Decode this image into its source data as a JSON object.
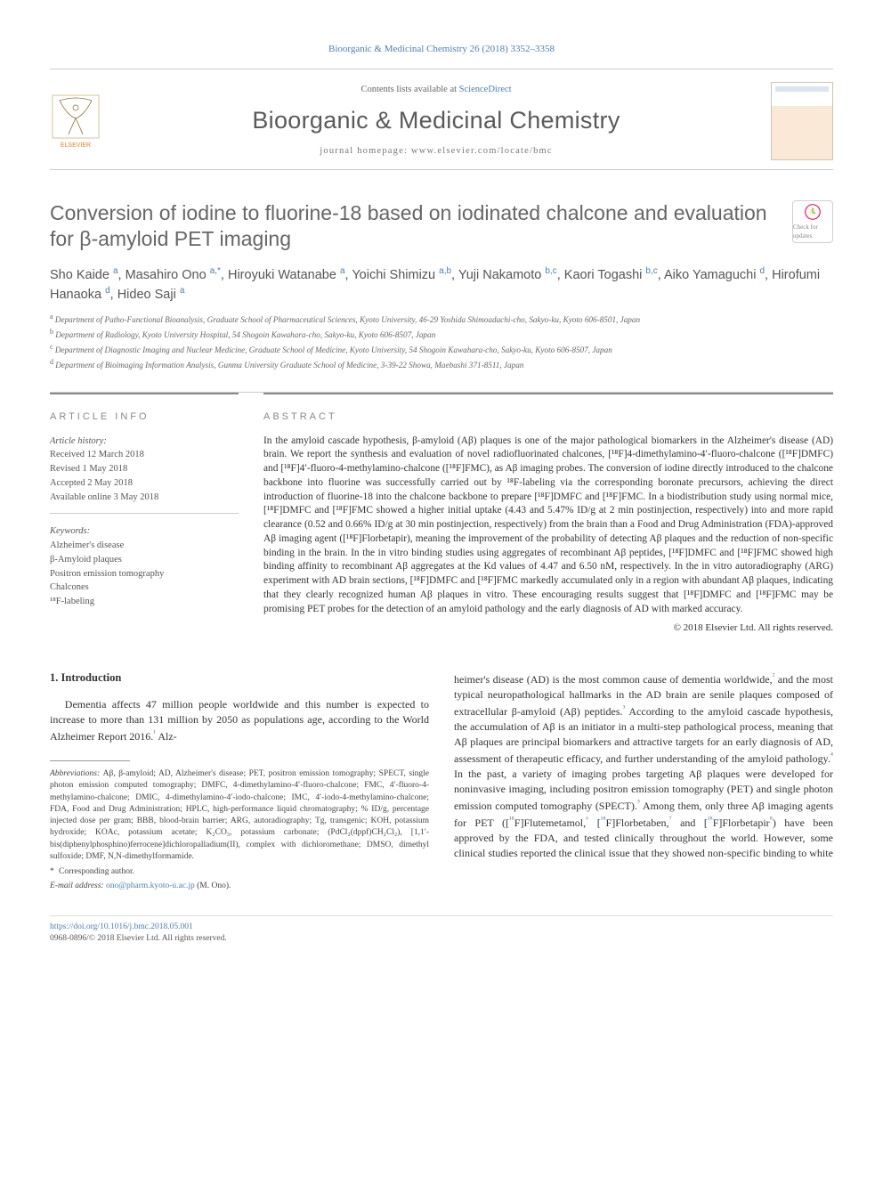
{
  "citation": "Bioorganic & Medicinal Chemistry 26 (2018) 3352–3358",
  "header": {
    "contents_prefix": "Contents lists available at ",
    "contents_link": "ScienceDirect",
    "journal": "Bioorganic & Medicinal Chemistry",
    "homepage": "journal homepage: www.elsevier.com/locate/bmc",
    "publisher": "ELSEVIER"
  },
  "title": "Conversion of iodine to fluorine-18 based on iodinated chalcone and evaluation for β-amyloid PET imaging",
  "update_badge": "Check for updates",
  "authors_html": "Sho Kaide <sup>a</sup>, Masahiro Ono <sup>a,*</sup>, Hiroyuki Watanabe <sup>a</sup>, Yoichi Shimizu <sup>a,b</sup>, Yuji Nakamoto <sup>b,c</sup>, Kaori Togashi <sup>b,c</sup>, Aiko Yamaguchi <sup>d</sup>, Hirofumi Hanaoka <sup>d</sup>, Hideo Saji <sup>a</sup>",
  "affiliations": [
    {
      "sup": "a",
      "text": "Department of Patho-Functional Bioanalysis, Graduate School of Pharmaceutical Sciences, Kyoto University, 46-29 Yoshida Shimoadachi-cho, Sakyo-ku, Kyoto 606-8501, Japan"
    },
    {
      "sup": "b",
      "text": "Department of Radiology, Kyoto University Hospital, 54 Shogoin Kawahara-cho, Sakyo-ku, Kyoto 606-8507, Japan"
    },
    {
      "sup": "c",
      "text": "Department of Diagnostic Imaging and Nuclear Medicine, Graduate School of Medicine, Kyoto University, 54 Shogoin Kawahara-cho, Sakyo-ku, Kyoto 606-8507, Japan"
    },
    {
      "sup": "d",
      "text": "Department of Bioimaging Information Analysis, Gunma University Graduate School of Medicine, 3-39-22 Showa, Maebashi 371-8511, Japan"
    }
  ],
  "article_info": {
    "heading": "ARTICLE INFO",
    "history_label": "Article history:",
    "history": [
      "Received 12 March 2018",
      "Revised 1 May 2018",
      "Accepted 2 May 2018",
      "Available online 3 May 2018"
    ],
    "keywords_label": "Keywords:",
    "keywords": [
      "Alzheimer's disease",
      "β-Amyloid plaques",
      "Positron emission tomography",
      "Chalcones",
      "¹⁸F-labeling"
    ]
  },
  "abstract": {
    "heading": "ABSTRACT",
    "text": "In the amyloid cascade hypothesis, β-amyloid (Aβ) plaques is one of the major pathological biomarkers in the Alzheimer's disease (AD) brain. We report the synthesis and evaluation of novel radiofluorinated chalcones, [¹⁸F]4-dimethylamino-4′-fluoro-chalcone ([¹⁸F]DMFC) and [¹⁸F]4′-fluoro-4-methylamino-chalcone ([¹⁸F]FMC), as Aβ imaging probes. The conversion of iodine directly introduced to the chalcone backbone into fluorine was successfully carried out by ¹⁸F-labeling via the corresponding boronate precursors, achieving the direct introduction of fluorine-18 into the chalcone backbone to prepare [¹⁸F]DMFC and [¹⁸F]FMC. In a biodistribution study using normal mice, [¹⁸F]DMFC and [¹⁸F]FMC showed a higher initial uptake (4.43 and 5.47% ID/g at 2 min postinjection, respectively) into and more rapid clearance (0.52 and 0.66% ID/g at 30 min postinjection, respectively) from the brain than a Food and Drug Administration (FDA)-approved Aβ imaging agent ([¹⁸F]Florbetapir), meaning the improvement of the probability of detecting Aβ plaques and the reduction of non-specific binding in the brain. In the in vitro binding studies using aggregates of recombinant Aβ peptides, [¹⁸F]DMFC and [¹⁸F]FMC showed high binding affinity to recombinant Aβ aggregates at the Kd values of 4.47 and 6.50 nM, respectively. In the in vitro autoradiography (ARG) experiment with AD brain sections, [¹⁸F]DMFC and [¹⁸F]FMC markedly accumulated only in a region with abundant Aβ plaques, indicating that they clearly recognized human Aβ plaques in vitro. These encouraging results suggest that [¹⁸F]DMFC and [¹⁸F]FMC may be promising PET probes for the detection of an amyloid pathology and the early diagnosis of AD with marked accuracy.",
    "copyright": "© 2018 Elsevier Ltd. All rights reserved."
  },
  "intro": {
    "heading": "1. Introduction",
    "col1": "Dementia affects 47 million people worldwide and this number is expected to increase to more than 131 million by 2050 as populations age, according to the World Alzheimer Report 2016.¹ Alz-",
    "col2": "heimer's disease (AD) is the most common cause of dementia worldwide,² and the most typical neuropathological hallmarks in the AD brain are senile plaques composed of extracellular β-amyloid (Aβ) peptides.³ According to the amyloid cascade hypothesis, the accumulation of Aβ is an initiator in a multi-step pathological process, meaning that Aβ plaques are principal biomarkers and attractive targets for an early diagnosis of AD, assessment of therapeutic efficacy, and further understanding of the amyloid pathology.⁴ In the past, a variety of imaging probes targeting Aβ plaques were developed for noninvasive imaging, including positron emission tomography (PET) and single photon emission computed tomography (SPECT).⁵ Among them, only three Aβ imaging agents for PET ([¹⁸F]Flutemetamol,⁶ [¹⁸F]Florbetaben,⁷ and [¹⁸F]Florbetapir⁸) have been approved by the FDA, and tested clinically throughout the world. However, some clinical studies reported the clinical issue that they showed non-specific binding to white"
  },
  "footnotes": {
    "abbrev_label": "Abbreviations:",
    "abbrev": "Aβ, β-amyloid; AD, Alzheimer's disease; PET, positron emission tomography; SPECT, single photon emission computed tomography; DMFC, 4-dimethylamino-4′-fluoro-chalcone; FMC, 4′-fluoro-4-methylamino-chalcone; DMIC, 4-dimethylamino-4′-iodo-chalcone; IMC, 4′-iodo-4-methylamino-chalcone; FDA, Food and Drug Administration; HPLC, high-performance liquid chromatography; % ID/g, percentage injected dose per gram; BBB, blood-brain barrier; ARG, autoradiography; Tg, transgenic; KOH, potassium hydroxide; KOAc, potassium acetate; K₂CO₃, potassium carbonate; (PdCl₂(dppf)CH₂Cl₂), [1,1′-bis(diphenylphosphino)ferrocene]dichloropalladium(II), complex with dichloromethane; DMSO, dimethyl sulfoxide; DMF, N,N-dimethylformamide.",
    "corr_label": "Corresponding author.",
    "email_label": "E-mail address:",
    "email": "ono@pharm.kyoto-u.ac.jp",
    "email_name": "(M. Ono)."
  },
  "footer": {
    "doi": "https://doi.org/10.1016/j.bmc.2018.05.001",
    "issn_line": "0968-0896/© 2018 Elsevier Ltd. All rights reserved."
  },
  "colors": {
    "link": "#4b7fb3",
    "text": "#333333",
    "muted": "#666666",
    "elsevier_orange": "#ef7f1a",
    "border": "#cccccc"
  }
}
